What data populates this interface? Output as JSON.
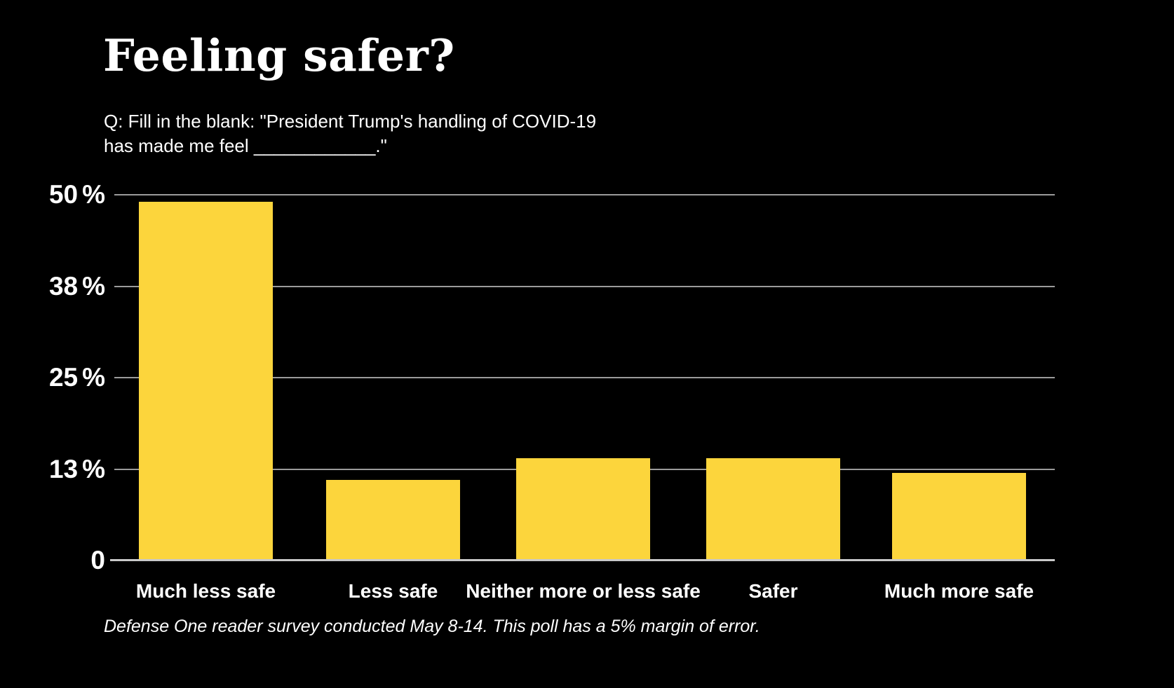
{
  "title": "Feeling safer?",
  "subtitle_line1": "Q: Fill in the blank: \"President Trump's handling of COVID-19",
  "subtitle_line2": "has made me feel ____________.\"",
  "footnote": "Defense One reader survey conducted May 8-14. This poll has a 5% margin of error.",
  "colors": {
    "background": "#000000",
    "bar": "#fcd53c",
    "gridline": "#9b9b9b",
    "axis": "#c9c9c9",
    "text": "#ffffff"
  },
  "chart_data": {
    "type": "bar",
    "categories": [
      "Much less safe",
      "Less safe",
      "Neither more or less safe",
      "Safer",
      "Much more safe"
    ],
    "values": [
      49,
      11,
      14,
      14,
      12
    ],
    "title": "Feeling safer?",
    "subtitle": "Q: Fill in the blank: \"President Trump's handling of COVID-19 has made me feel ____________.\"",
    "xlabel": "",
    "ylabel": "",
    "ylim": [
      0,
      50
    ],
    "yticks": [
      {
        "value": 50,
        "label": "50",
        "suffix": "%"
      },
      {
        "value": 37.5,
        "label": "38",
        "suffix": "%"
      },
      {
        "value": 25,
        "label": "25",
        "suffix": "%"
      },
      {
        "value": 12.5,
        "label": "13",
        "suffix": "%"
      },
      {
        "value": 0,
        "label": "0",
        "suffix": ""
      }
    ],
    "grid": true,
    "legend": false,
    "bar_color": "#fcd53c",
    "background": "#000000"
  }
}
